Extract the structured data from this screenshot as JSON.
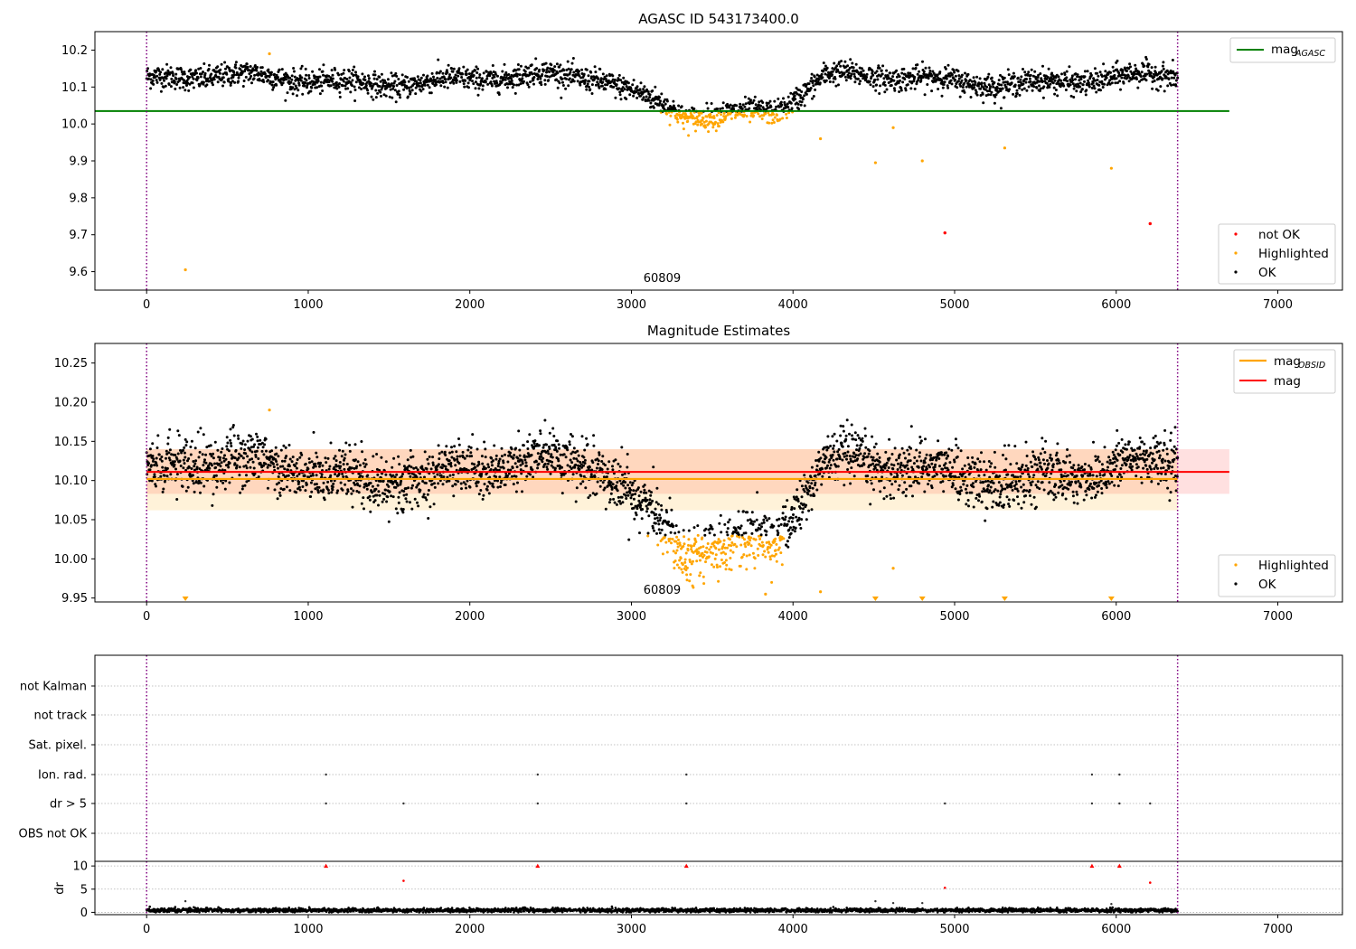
{
  "colors": {
    "ok": "#000000",
    "highlighted": "#ffa500",
    "not_ok": "#ff0000",
    "agasc_line": "#008000",
    "obsid_line": "#ffa500",
    "mag_line": "#ff0000",
    "obsid_band": "#ffa500",
    "mag_band": "#ff0000",
    "obs_bounds": "#800080"
  },
  "chart_data": [
    {
      "type": "scatter",
      "title": "AGASC ID 543173400.0",
      "ylim": [
        9.55,
        10.25
      ],
      "xlim": [
        -320,
        7400
      ],
      "x_ticks": [
        0,
        1000,
        2000,
        3000,
        4000,
        5000,
        6000,
        7000
      ],
      "y_ticks": [
        9.6,
        9.7,
        9.8,
        9.9,
        10.0,
        10.1,
        10.2
      ],
      "y_tick_labels": [
        "9.6",
        "9.7",
        "9.8",
        "9.9",
        "10.0",
        "10.1",
        "10.2"
      ],
      "obs_bounds": [
        0,
        6380
      ],
      "obs_label": "60809",
      "obs_label_x": 3190,
      "mag_agasc": 10.035,
      "mag_agasc_xrange": [
        0,
        6700
      ],
      "legend_lines": [
        {
          "name": "mag",
          "sub": "AGASC"
        }
      ],
      "legend_points": [
        "not OK",
        "Highlighted",
        "OK"
      ],
      "ok_level": 10.12,
      "outliers_highlighted": [
        [
          240,
          9.605
        ],
        [
          760,
          10.19
        ],
        [
          4170,
          9.96
        ],
        [
          4510,
          9.895
        ],
        [
          4620,
          9.99
        ],
        [
          4800,
          9.9
        ],
        [
          5310,
          9.935
        ],
        [
          5970,
          9.88
        ]
      ],
      "outliers_not_ok": [
        [
          4940,
          9.705
        ],
        [
          6210,
          9.73
        ]
      ],
      "grid": false
    },
    {
      "type": "scatter",
      "title": "Magnitude Estimates",
      "ylim": [
        9.945,
        10.275
      ],
      "xlim": [
        -320,
        7400
      ],
      "x_ticks": [
        0,
        1000,
        2000,
        3000,
        4000,
        5000,
        6000,
        7000
      ],
      "y_ticks": [
        9.95,
        10.0,
        10.05,
        10.1,
        10.15,
        10.2,
        10.25
      ],
      "y_tick_labels": [
        "9.95",
        "10.00",
        "10.05",
        "10.10",
        "10.15",
        "10.20",
        "10.25"
      ],
      "obs_bounds": [
        0,
        6380
      ],
      "obs_label": "60809",
      "obs_label_x": 3190,
      "mag_obsid": 10.102,
      "mag_obsid_band": [
        10.062,
        10.14
      ],
      "mag_obsid_xrange": [
        0,
        6380
      ],
      "mag": 10.111,
      "mag_band": [
        10.083,
        10.14
      ],
      "mag_xrange": [
        0,
        6700
      ],
      "legend_lines": [
        {
          "name": "mag",
          "sub": "OBSID"
        },
        {
          "name": "mag",
          "sub": ""
        }
      ],
      "legend_points": [
        "Highlighted",
        "OK"
      ],
      "ok_level": 10.112,
      "outliers_highlighted": [
        [
          760,
          10.19
        ],
        [
          4170,
          9.958
        ],
        [
          4620,
          9.988
        ],
        [
          3830,
          9.955
        ]
      ],
      "clipped_markers": [
        240,
        4510,
        4800,
        5310,
        5970
      ],
      "grid": false
    },
    {
      "type": "scatter",
      "title": "",
      "categories": [
        "not Kalman",
        "not track",
        "Sat. pixel.",
        "Ion. rad.",
        "dr > 5",
        "OBS not OK"
      ],
      "xlim": [
        -320,
        7400
      ],
      "obs_bounds": [
        0,
        6380
      ],
      "flag_points": {
        "Ion. rad.": [
          1110,
          2420,
          3340,
          5850,
          6020
        ],
        "dr > 5": [
          1110,
          1590,
          2420,
          3340,
          4940,
          5850,
          6020,
          6210
        ]
      },
      "grid": true
    },
    {
      "type": "scatter",
      "title": "",
      "ylabel": "dr",
      "ylim": [
        -0.5,
        11
      ],
      "xlim": [
        -320,
        7400
      ],
      "x_ticks": [
        0,
        1000,
        2000,
        3000,
        4000,
        5000,
        6000,
        7000
      ],
      "y_ticks": [
        0,
        5,
        10
      ],
      "y_tick_labels": [
        "0",
        "5",
        "10"
      ],
      "obs_bounds": [
        0,
        6380
      ],
      "dr_clipped_red": [
        1110,
        2420,
        3340,
        5850,
        6020
      ],
      "dr_red_points": [
        [
          1590,
          6.8
        ],
        [
          4940,
          5.3
        ],
        [
          6210,
          6.4
        ]
      ],
      "dr_gray_points": [
        [
          240,
          2.4
        ],
        [
          4510,
          2.4
        ],
        [
          4620,
          2.0
        ],
        [
          4800,
          2.0
        ],
        [
          5970,
          1.8
        ]
      ],
      "dr_baseline": 0.45,
      "grid": true
    }
  ]
}
